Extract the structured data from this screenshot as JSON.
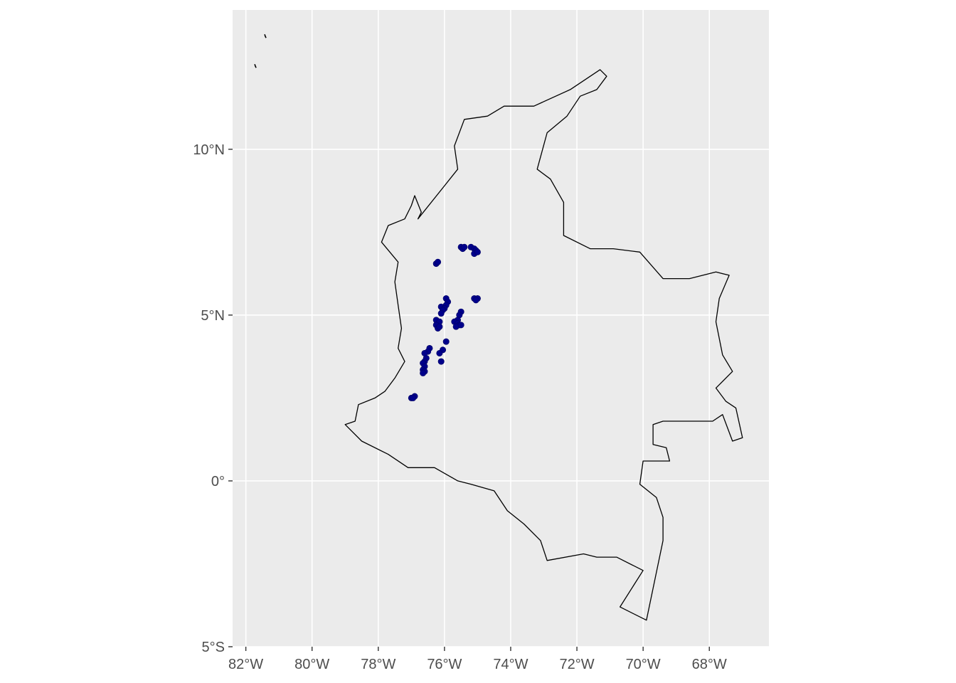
{
  "chart_data": {
    "type": "scatter",
    "title": "",
    "xlabel": "",
    "ylabel": "",
    "xlim": [
      -82.4,
      -66.2
    ],
    "ylim": [
      -5,
      14.2
    ],
    "grid": true,
    "panel_color": "#ebebeb",
    "grid_color": "#ffffff",
    "x_ticks": [
      {
        "value": -82,
        "label": "82°W"
      },
      {
        "value": -80,
        "label": "80°W"
      },
      {
        "value": -78,
        "label": "78°W"
      },
      {
        "value": -76,
        "label": "76°W"
      },
      {
        "value": -74,
        "label": "74°W"
      },
      {
        "value": -72,
        "label": "72°W"
      },
      {
        "value": -70,
        "label": "70°W"
      },
      {
        "value": -68,
        "label": "68°W"
      }
    ],
    "y_ticks": [
      {
        "value": 10,
        "label": "10°N"
      },
      {
        "value": 5,
        "label": "5°N"
      },
      {
        "value": 0,
        "label": "0°"
      },
      {
        "value": -5,
        "label": "5°S"
      }
    ],
    "country_outline": {
      "stroke": "#000000",
      "coords": [
        [
          -79.0,
          1.7
        ],
        [
          -78.7,
          1.8
        ],
        [
          -78.6,
          2.3
        ],
        [
          -78.1,
          2.5
        ],
        [
          -77.8,
          2.7
        ],
        [
          -77.5,
          3.1
        ],
        [
          -77.2,
          3.6
        ],
        [
          -77.4,
          4.0
        ],
        [
          -77.3,
          4.6
        ],
        [
          -77.4,
          5.3
        ],
        [
          -77.5,
          6.0
        ],
        [
          -77.4,
          6.6
        ],
        [
          -77.9,
          7.2
        ],
        [
          -77.7,
          7.7
        ],
        [
          -77.2,
          7.9
        ],
        [
          -77.0,
          8.3
        ],
        [
          -76.9,
          8.6
        ],
        [
          -76.7,
          8.1
        ],
        [
          -76.8,
          7.9
        ],
        [
          -76.0,
          8.9
        ],
        [
          -75.6,
          9.4
        ],
        [
          -75.7,
          10.1
        ],
        [
          -75.4,
          10.9
        ],
        [
          -74.7,
          11.0
        ],
        [
          -74.2,
          11.3
        ],
        [
          -73.3,
          11.3
        ],
        [
          -72.2,
          11.8
        ],
        [
          -71.3,
          12.4
        ],
        [
          -71.1,
          12.2
        ],
        [
          -71.4,
          11.8
        ],
        [
          -71.9,
          11.6
        ],
        [
          -72.3,
          11.0
        ],
        [
          -72.9,
          10.5
        ],
        [
          -73.2,
          9.4
        ],
        [
          -72.8,
          9.1
        ],
        [
          -72.4,
          8.4
        ],
        [
          -72.4,
          7.4
        ],
        [
          -71.6,
          7.0
        ],
        [
          -70.9,
          7.0
        ],
        [
          -70.1,
          6.9
        ],
        [
          -69.4,
          6.1
        ],
        [
          -68.6,
          6.1
        ],
        [
          -67.8,
          6.3
        ],
        [
          -67.4,
          6.2
        ],
        [
          -67.7,
          5.5
        ],
        [
          -67.8,
          4.8
        ],
        [
          -67.6,
          3.8
        ],
        [
          -67.3,
          3.3
        ],
        [
          -67.8,
          2.8
        ],
        [
          -67.5,
          2.4
        ],
        [
          -67.2,
          2.2
        ],
        [
          -67.0,
          1.3
        ],
        [
          -67.3,
          1.2
        ],
        [
          -67.6,
          2.0
        ],
        [
          -67.9,
          1.8
        ],
        [
          -69.4,
          1.8
        ],
        [
          -69.7,
          1.7
        ],
        [
          -69.7,
          1.1
        ],
        [
          -69.3,
          1.0
        ],
        [
          -69.2,
          0.6
        ],
        [
          -70.0,
          0.6
        ],
        [
          -70.1,
          -0.1
        ],
        [
          -69.6,
          -0.5
        ],
        [
          -69.4,
          -1.1
        ],
        [
          -69.4,
          -1.8
        ],
        [
          -69.9,
          -4.2
        ],
        [
          -70.7,
          -3.8
        ],
        [
          -70.0,
          -2.7
        ],
        [
          -70.8,
          -2.3
        ],
        [
          -71.4,
          -2.3
        ],
        [
          -71.8,
          -2.2
        ],
        [
          -72.9,
          -2.4
        ],
        [
          -73.1,
          -1.8
        ],
        [
          -73.6,
          -1.3
        ],
        [
          -74.1,
          -0.9
        ],
        [
          -74.5,
          -0.3
        ],
        [
          -75.2,
          -0.1
        ],
        [
          -75.6,
          0.0
        ],
        [
          -76.3,
          0.4
        ],
        [
          -77.1,
          0.4
        ],
        [
          -77.7,
          0.8
        ],
        [
          -78.5,
          1.2
        ],
        [
          -79.0,
          1.7
        ]
      ]
    },
    "islands": [
      {
        "lon": -81.7,
        "lat": 12.5
      },
      {
        "lon": -81.4,
        "lat": 13.4
      }
    ],
    "series": [
      {
        "color": "#00008b",
        "points": [
          [
            -75.5,
            7.05
          ],
          [
            -75.45,
            7.0
          ],
          [
            -75.4,
            7.05
          ],
          [
            -75.2,
            7.05
          ],
          [
            -75.1,
            7.0
          ],
          [
            -75.05,
            6.95
          ],
          [
            -75.1,
            6.85
          ],
          [
            -75.0,
            6.9
          ],
          [
            -76.25,
            6.55
          ],
          [
            -76.2,
            6.6
          ],
          [
            -75.1,
            5.5
          ],
          [
            -75.0,
            5.5
          ],
          [
            -75.05,
            5.45
          ],
          [
            -75.95,
            5.5
          ],
          [
            -75.9,
            5.4
          ],
          [
            -75.95,
            5.3
          ],
          [
            -76.1,
            5.25
          ],
          [
            -76.0,
            5.2
          ],
          [
            -76.05,
            5.15
          ],
          [
            -76.1,
            5.05
          ],
          [
            -76.25,
            4.85
          ],
          [
            -76.15,
            4.8
          ],
          [
            -76.25,
            4.7
          ],
          [
            -76.2,
            4.6
          ],
          [
            -76.15,
            4.65
          ],
          [
            -75.5,
            5.1
          ],
          [
            -75.55,
            5.0
          ],
          [
            -75.6,
            4.85
          ],
          [
            -75.7,
            4.8
          ],
          [
            -75.6,
            4.75
          ],
          [
            -75.55,
            4.7
          ],
          [
            -75.65,
            4.65
          ],
          [
            -75.5,
            4.7
          ],
          [
            -75.95,
            4.2
          ],
          [
            -76.05,
            3.95
          ],
          [
            -76.15,
            3.85
          ],
          [
            -76.1,
            3.6
          ],
          [
            -76.45,
            4.0
          ],
          [
            -76.5,
            3.9
          ],
          [
            -76.6,
            3.85
          ],
          [
            -76.55,
            3.7
          ],
          [
            -76.6,
            3.6
          ],
          [
            -76.65,
            3.55
          ],
          [
            -76.6,
            3.45
          ],
          [
            -76.65,
            3.35
          ],
          [
            -76.6,
            3.3
          ],
          [
            -76.65,
            3.25
          ],
          [
            -77.0,
            2.5
          ],
          [
            -76.9,
            2.55
          ],
          [
            -76.95,
            2.5
          ]
        ]
      }
    ]
  }
}
